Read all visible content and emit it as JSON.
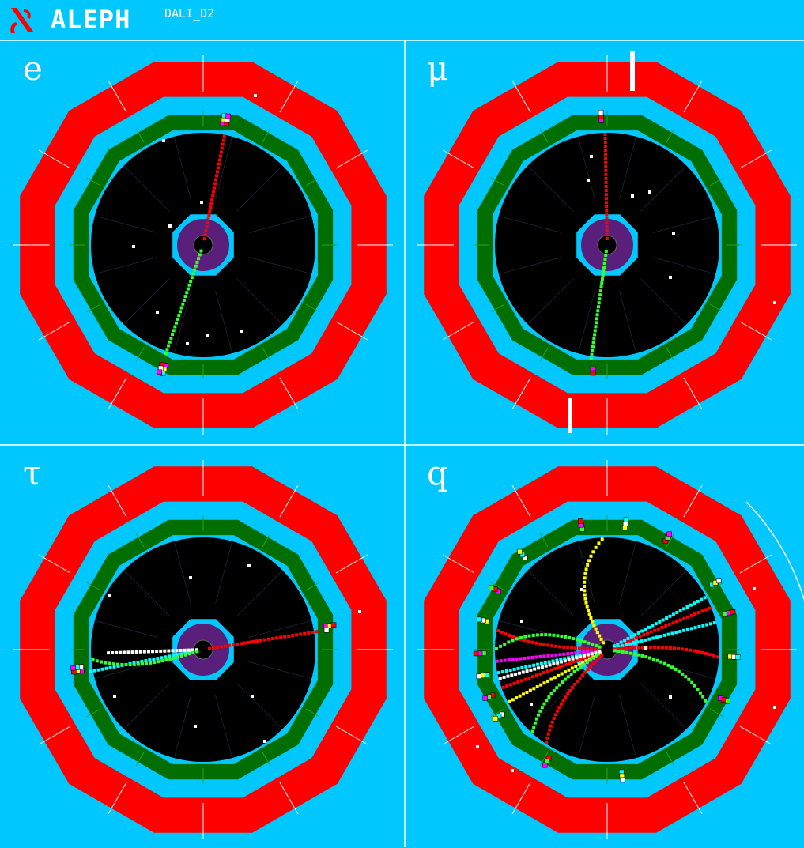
{
  "header": {
    "title": "ALEPH",
    "subtitle": "DALI_D2",
    "logo_icon": "aleph-letter-logo"
  },
  "colors": {
    "background": "#00c8ff",
    "hadron_calorimeter": "#ff0000",
    "em_calorimeter": "#006e00",
    "tracking_chamber": "#000000",
    "inner_detector": "#5a1f7a",
    "divider_lines": "#ffffff"
  },
  "panels": [
    {
      "label": "e"
    },
    {
      "label": "μ"
    },
    {
      "label": "τ"
    },
    {
      "label": "q"
    }
  ]
}
